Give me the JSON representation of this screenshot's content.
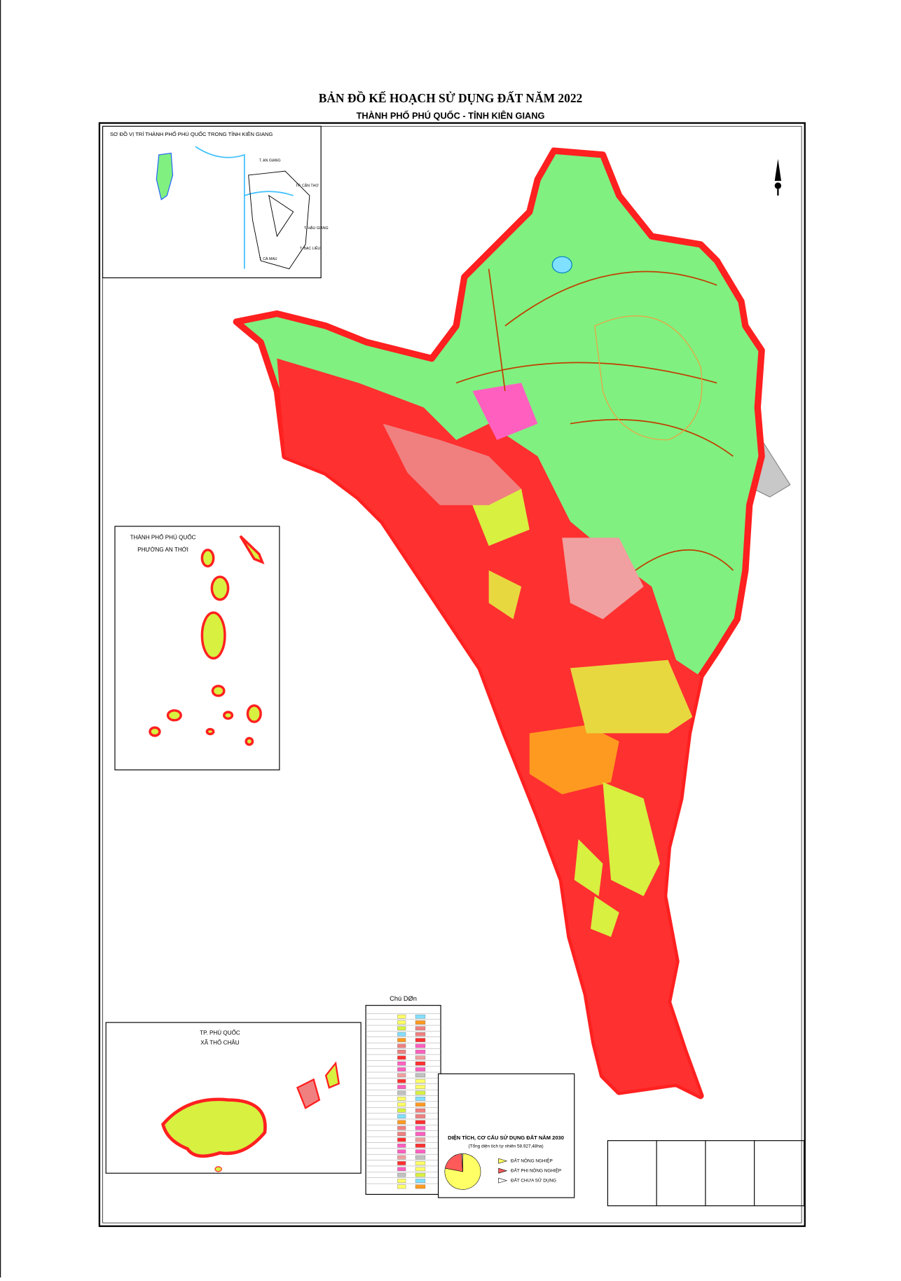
{
  "header": {
    "title": "BẢN ĐỒ KẾ HOẠCH SỬ DỤNG ĐẤT NĂM 2022",
    "subtitle": "THÀNH PHỐ PHÚ QUỐC - TỈNH KIÊN GIANG"
  },
  "location_inset": {
    "title": "SƠ ĐỒ VỊ TRÍ THÀNH PHỐ PHÚ QUỐC TRONG TỈNH KIÊN GIANG",
    "labels": [
      "T. AN GIANG",
      "TP. CẦN THƠ",
      "T. HẬU GIANG",
      "T. BẠC LIÊU",
      "T. CÀ MAU"
    ]
  },
  "an_thoi_inset": {
    "title": "THÀNH PHỐ PHÚ QUỐC",
    "subtitle": "PHƯỜNG AN THỚI"
  },
  "tho_chau_inset": {
    "title": "TP. PHÚ QUỐC",
    "subtitle": "XÃ THỔ CHÂU"
  },
  "legend": {
    "title": "Chú DØn"
  },
  "land_use_chart": {
    "type": "pie",
    "title": "DIỆN TÍCH, CƠ CẤU SỬ DỤNG ĐẤT NĂM 2030",
    "subtitle": "(Tổng diện tích tự nhiên 58.927,48ha)",
    "categories": [
      "ĐẤT NÔNG NGHIỆP",
      "ĐẤT PHI NÔNG NGHIỆP",
      "ĐẤT CHƯA SỬ DỤNG"
    ],
    "values": [
      78,
      21,
      1
    ],
    "colors": [
      "#ffff66",
      "#ff5a5a",
      "#ffffff"
    ]
  }
}
